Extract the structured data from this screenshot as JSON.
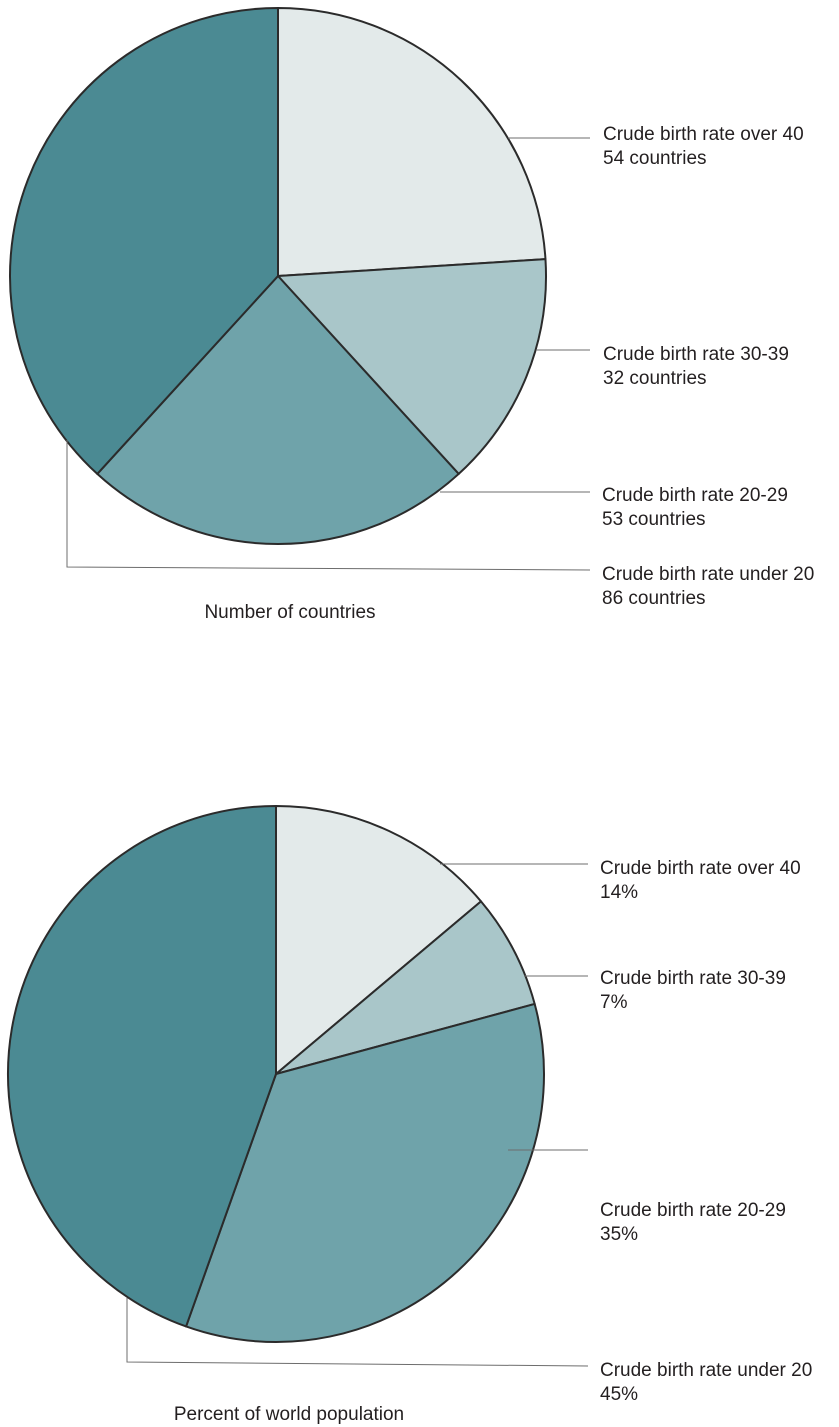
{
  "colors": {
    "over_40": "#e3eaea",
    "30_39": "#a9c6c9",
    "20_29": "#6fa3aa",
    "under_20": "#4b8a93",
    "outline": "#2b2b2b",
    "leader": "#6d6d6d"
  },
  "chart_data": [
    {
      "type": "pie",
      "title": "Number of countries",
      "slices": [
        {
          "label": "Crude birth rate over 40",
          "value": 54,
          "value_text": "54 countries",
          "color": "#e3eaea"
        },
        {
          "label": "Crude birth rate 30-39",
          "value": 32,
          "value_text": "32 countries",
          "color": "#a9c6c9"
        },
        {
          "label": "Crude birth rate 20-29",
          "value": 53,
          "value_text": "53 countries",
          "color": "#6fa3aa"
        },
        {
          "label": "Crude birth rate under 20",
          "value": 86,
          "value_text": "86 countries",
          "color": "#4b8a93"
        }
      ]
    },
    {
      "type": "pie",
      "title": "Percent of world population",
      "slices": [
        {
          "label": "Crude birth rate over 40",
          "value": 14,
          "value_text": "14%",
          "color": "#e3eaea"
        },
        {
          "label": "Crude birth rate 30-39",
          "value": 7,
          "value_text": "7%",
          "color": "#a9c6c9"
        },
        {
          "label": "Crude birth rate 20-29",
          "value": 35,
          "value_text": "35%",
          "color": "#6fa3aa"
        },
        {
          "label": "Crude birth rate under 20",
          "value": 45,
          "value_text": "45%",
          "color": "#4b8a93"
        }
      ]
    }
  ]
}
